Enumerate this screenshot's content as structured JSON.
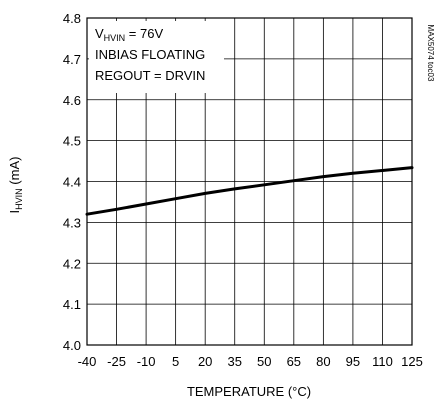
{
  "chart_data": {
    "type": "line",
    "x_ticks": [
      -40,
      -25,
      -10,
      5,
      20,
      35,
      50,
      65,
      80,
      95,
      110,
      125
    ],
    "y_ticks": [
      4.0,
      4.1,
      4.2,
      4.3,
      4.4,
      4.5,
      4.6,
      4.7,
      4.8
    ],
    "x_tick_labels": [
      "-40",
      "-25",
      "-10",
      "5",
      "20",
      "35",
      "50",
      "65",
      "80",
      "95",
      "110",
      "125"
    ],
    "y_tick_labels": [
      "4.0",
      "4.1",
      "4.2",
      "4.3",
      "4.4",
      "4.5",
      "4.6",
      "4.7",
      "4.8"
    ],
    "xlim": [
      -40,
      125
    ],
    "ylim": [
      4.0,
      4.8
    ],
    "xlabel": "TEMPERATURE (°C)",
    "ylabel": {
      "main": "I",
      "sub": "HVIN",
      "rest": " (mA)"
    },
    "grid": true,
    "series": [
      {
        "x": [
          -40,
          -25,
          -10,
          5,
          20,
          35,
          50,
          65,
          80,
          95,
          110,
          125
        ],
        "y": [
          4.32,
          4.332,
          4.345,
          4.358,
          4.371,
          4.382,
          4.392,
          4.402,
          4.412,
          4.42,
          4.427,
          4.434
        ]
      }
    ],
    "annotations": {
      "line1": {
        "main": "V",
        "sub": "HVIN",
        "rest": " = 76V"
      },
      "line2": "INBIAS FLOATING",
      "line3": "REGOUT = DRVIN"
    },
    "figure_id": "MAX5074 toc03"
  },
  "colors": {
    "line": "#000000",
    "grid": "#000000",
    "background": "#ffffff"
  }
}
